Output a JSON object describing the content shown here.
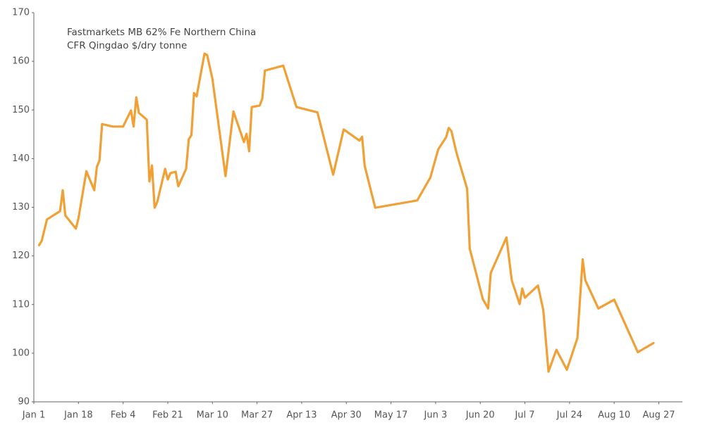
{
  "chart_data": {
    "type": "line",
    "annotations": [
      "Fastmarkets MB 62% Fe Northern China",
      "CFR Qingdao $/dry tonne"
    ],
    "xlim": [
      "Jan 1",
      "Sep 5"
    ],
    "xticks": [
      "Jan 1",
      "Jan 18",
      "Feb 4",
      "Feb 21",
      "Mar 10",
      "Mar 27",
      "Apr 13",
      "Apr 30",
      "May 17",
      "Jun 3",
      "Jun 20",
      "Jul 7",
      "Jul 24",
      "Aug 10",
      "Aug 27"
    ],
    "ylim": [
      90,
      170
    ],
    "yticks": [
      90,
      100,
      110,
      120,
      130,
      140,
      150,
      160,
      170
    ],
    "grid": false,
    "series": [
      {
        "color": "#f0a035",
        "x": [
          "Jan 3",
          "Jan 4",
          "Jan 6",
          "Jan 11",
          "Jan 12",
          "Jan 13",
          "Jan 17",
          "Jan 18",
          "Jan 21",
          "Jan 24",
          "Jan 25",
          "Jan 26",
          "Jan 27",
          "Jan 31",
          "Feb 4",
          "Feb 7",
          "Feb 8",
          "Feb 9",
          "Feb 10",
          "Feb 13",
          "Feb 14",
          "Feb 15",
          "Feb 16",
          "Feb 17",
          "Feb 20",
          "Feb 21",
          "Feb 22",
          "Feb 24",
          "Feb 25",
          "Feb 28",
          "Mar 1",
          "Mar 2",
          "Mar 3",
          "Mar 4",
          "Mar 7",
          "Mar 8",
          "Mar 10",
          "Mar 15",
          "Mar 18",
          "Mar 22",
          "Mar 23",
          "Mar 24",
          "Mar 25",
          "Mar 28",
          "Mar 29",
          "Mar 30",
          "Apr 6",
          "Apr 11",
          "Apr 19",
          "Apr 25",
          "Apr 29",
          "May 5",
          "May 6",
          "May 7",
          "May 11",
          "May 27",
          "Jun 1",
          "Jun 4",
          "Jun 7",
          "Jun 8",
          "Jun 9",
          "Jun 11",
          "Jun 15",
          "Jun 16",
          "Jun 21",
          "Jun 23",
          "Jun 24",
          "Jun 30",
          "Jul 2",
          "Jul 5",
          "Jul 6",
          "Jul 7",
          "Jul 12",
          "Jul 14",
          "Jul 16",
          "Jul 19",
          "Jul 23",
          "Jul 27",
          "Jul 29",
          "Jul 30",
          "Aug 4",
          "Aug 10",
          "Aug 19",
          "Aug 25"
        ],
        "values": [
          122.2,
          123.1,
          127.5,
          129.2,
          133.5,
          128.3,
          125.6,
          127.7,
          137.4,
          133.5,
          138.3,
          139.6,
          147.1,
          146.6,
          146.6,
          149.9,
          146.6,
          152.6,
          149.4,
          148.0,
          135.3,
          138.6,
          129.9,
          131.1,
          137.9,
          135.7,
          137.0,
          137.3,
          134.3,
          137.9,
          144.0,
          144.8,
          153.5,
          152.8,
          161.6,
          161.3,
          156.4,
          136.4,
          149.7,
          143.4,
          145.1,
          141.5,
          150.6,
          150.9,
          152.3,
          158.1,
          159.1,
          150.6,
          149.5,
          136.7,
          146.0,
          143.7,
          144.5,
          138.5,
          129.9,
          131.4,
          136.1,
          141.9,
          144.4,
          146.3,
          145.7,
          141.1,
          133.8,
          121.5,
          111.1,
          109.2,
          116.5,
          123.8,
          115.0,
          110.1,
          113.3,
          111.4,
          113.9,
          108.9,
          96.2,
          100.7,
          96.6,
          103.1,
          119.3,
          115.0,
          109.2,
          111.0,
          100.2,
          102.1
        ]
      }
    ]
  }
}
